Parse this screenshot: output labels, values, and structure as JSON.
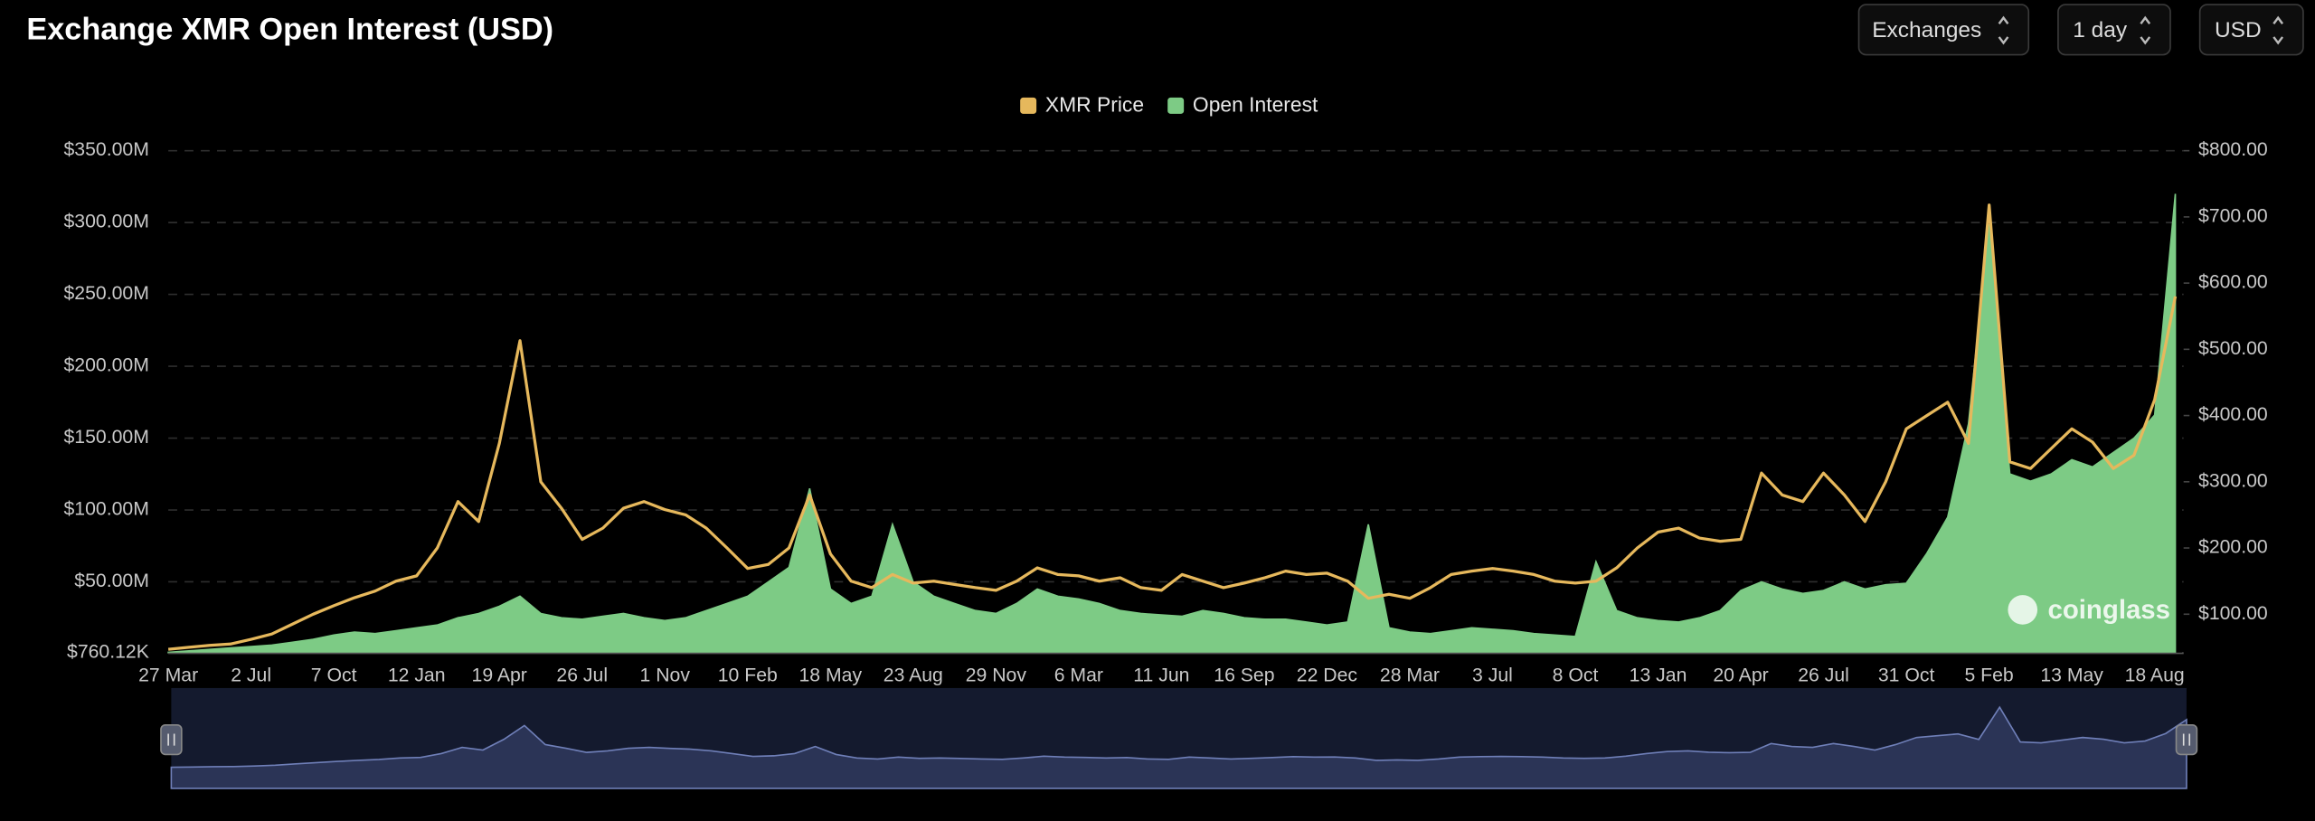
{
  "chart_data": {
    "type": "dual-axis-area-line",
    "title": "Exchange XMR Open Interest (USD)",
    "controls": [
      "Exchanges",
      "1 day",
      "USD"
    ],
    "watermark": "coinglass",
    "legend": "top",
    "grid": true,
    "categories": [
      "27 Mar",
      null,
      null,
      null,
      "2 Jul",
      null,
      null,
      null,
      "7 Oct",
      null,
      null,
      null,
      "12 Jan",
      null,
      null,
      null,
      "19 Apr",
      null,
      null,
      null,
      "26 Jul",
      null,
      null,
      null,
      "1 Nov",
      null,
      null,
      null,
      "10 Feb",
      null,
      null,
      null,
      "18 May",
      null,
      null,
      null,
      "23 Aug",
      null,
      null,
      null,
      "29 Nov",
      null,
      null,
      null,
      "6 Mar",
      null,
      null,
      null,
      "11 Jun",
      null,
      null,
      null,
      "16 Sep",
      null,
      null,
      null,
      "22 Dec",
      null,
      null,
      null,
      "28 Mar",
      null,
      null,
      null,
      "3 Jul",
      null,
      null,
      null,
      "8 Oct",
      null,
      null,
      null,
      "13 Jan",
      null,
      null,
      null,
      "20 Apr",
      null,
      null,
      null,
      "26 Jul",
      null,
      null,
      null,
      "31 Oct",
      null,
      null,
      null,
      "5 Feb",
      null,
      null,
      null,
      "13 May",
      null,
      null,
      null,
      "18 Aug",
      null
    ],
    "ylim": [
      760120,
      350000000
    ],
    "yticks": [
      {
        "value": 760120,
        "label": "$760.12K"
      },
      {
        "value": 50000000,
        "label": "$50.00M"
      },
      {
        "value": 100000000,
        "label": "$100.00M"
      },
      {
        "value": 150000000,
        "label": "$150.00M"
      },
      {
        "value": 200000000,
        "label": "$200.00M"
      },
      {
        "value": 250000000,
        "label": "$250.00M"
      },
      {
        "value": 300000000,
        "label": "$300.00M"
      },
      {
        "value": 350000000,
        "label": "$350.00M"
      }
    ],
    "y2lim": [
      42,
      800
    ],
    "y2ticks": [
      {
        "value": 100,
        "label": "$100.00"
      },
      {
        "value": 200,
        "label": "$200.00"
      },
      {
        "value": 300,
        "label": "$300.00"
      },
      {
        "value": 400,
        "label": "$400.00"
      },
      {
        "value": 500,
        "label": "$500.00"
      },
      {
        "value": 600,
        "label": "$600.00"
      },
      {
        "value": 700,
        "label": "$700.00"
      },
      {
        "value": 800,
        "label": "$800.00"
      }
    ],
    "series": [
      {
        "name": "XMR Price",
        "color": "#e6b85c",
        "kind": "line",
        "axis": "y2",
        "values": [
          47,
          50,
          53,
          55,
          62,
          70,
          85,
          100,
          113,
          125,
          135,
          150,
          158,
          200,
          270,
          240,
          358,
          513,
          300,
          260,
          213,
          230,
          260,
          270,
          258,
          250,
          230,
          200,
          169,
          175,
          200,
          280,
          191,
          150,
          140,
          160,
          147,
          150,
          145,
          140,
          136,
          150,
          170,
          160,
          158,
          150,
          155,
          140,
          136,
          160,
          150,
          140,
          147,
          155,
          165,
          160,
          162,
          150,
          124,
          130,
          124,
          140,
          160,
          165,
          169,
          165,
          160,
          150,
          147,
          150,
          170,
          200,
          224,
          230,
          215,
          210,
          213,
          313,
          280,
          270,
          313,
          280,
          240,
          300,
          380,
          400,
          420,
          358,
          718,
          330,
          320,
          350,
          380,
          360,
          320,
          340,
          424,
          580
        ]
      },
      {
        "name": "Open Interest",
        "color": "#7dcb85",
        "kind": "area",
        "values": [
          1000000,
          2000000,
          3000000,
          4000000,
          5000000,
          6000000,
          8000000,
          10000000,
          13000000,
          15000000,
          14000000,
          16000000,
          18000000,
          20000000,
          25000000,
          28000000,
          33000000,
          40000000,
          28000000,
          25000000,
          24000000,
          26000000,
          28000000,
          25000000,
          23000000,
          25000000,
          30000000,
          35000000,
          40000000,
          50000000,
          60000000,
          115000000,
          45000000,
          35000000,
          40000000,
          90000000,
          50000000,
          40000000,
          35000000,
          30000000,
          28000000,
          35000000,
          45000000,
          40000000,
          38000000,
          35000000,
          30000000,
          28000000,
          27000000,
          26000000,
          30000000,
          28000000,
          25000000,
          24000000,
          24000000,
          22000000,
          20000000,
          22000000,
          90000000,
          18000000,
          15000000,
          14000000,
          16000000,
          18000000,
          17000000,
          16000000,
          14000000,
          13000000,
          12000000,
          64000000,
          30000000,
          25000000,
          23000000,
          22000000,
          25000000,
          30000000,
          44000000,
          50000000,
          45000000,
          42000000,
          44000000,
          50000000,
          45000000,
          48000000,
          49000000,
          70000000,
          95000000,
          160000000,
          299000000,
          125000000,
          120000000,
          125000000,
          135000000,
          130000000,
          140000000,
          150000000,
          166000000,
          320000000
        ]
      }
    ]
  }
}
